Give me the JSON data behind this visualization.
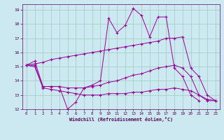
{
  "xlabel": "Windchill (Refroidissement éolien,°C)",
  "bg_color": "#cce8f0",
  "line_color": "#990099",
  "grid_color": "#99ccbb",
  "xlim": [
    -0.5,
    23.5
  ],
  "ylim": [
    12,
    19.4
  ],
  "xticks": [
    0,
    1,
    2,
    3,
    4,
    5,
    6,
    7,
    8,
    9,
    10,
    11,
    12,
    13,
    14,
    15,
    16,
    17,
    18,
    19,
    20,
    21,
    22,
    23
  ],
  "yticks": [
    12,
    13,
    14,
    15,
    16,
    17,
    18,
    19
  ],
  "series": [
    {
      "x": [
        0,
        1,
        2,
        3,
        4,
        5,
        6,
        7,
        8,
        9,
        10,
        11,
        12,
        13,
        14,
        15,
        16,
        17,
        18,
        19,
        20,
        21
      ],
      "y": [
        15.1,
        15.4,
        13.6,
        13.6,
        13.6,
        12.0,
        12.5,
        13.5,
        13.7,
        14.0,
        18.4,
        17.4,
        17.9,
        19.1,
        18.6,
        17.1,
        18.5,
        18.5,
        14.9,
        14.3,
        13.0,
        12.6
      ]
    },
    {
      "x": [
        0,
        1,
        2,
        3,
        4,
        5,
        6,
        7,
        8,
        9,
        10,
        11,
        12,
        13,
        14,
        15,
        16,
        17,
        18,
        19,
        20,
        21,
        22,
        23
      ],
      "y": [
        15.1,
        15.2,
        15.3,
        15.5,
        15.6,
        15.7,
        15.8,
        15.9,
        16.0,
        16.1,
        16.2,
        16.3,
        16.4,
        16.5,
        16.6,
        16.7,
        16.8,
        17.0,
        17.0,
        17.1,
        14.9,
        14.3,
        13.0,
        12.6
      ]
    },
    {
      "x": [
        0,
        1,
        2,
        3,
        4,
        5,
        6,
        7,
        8,
        9,
        10,
        11,
        12,
        13,
        14,
        15,
        16,
        17,
        18,
        19,
        20,
        21,
        22,
        23
      ],
      "y": [
        15.1,
        15.1,
        13.6,
        13.6,
        13.6,
        13.5,
        13.5,
        13.5,
        13.6,
        13.7,
        13.9,
        14.0,
        14.2,
        14.4,
        14.5,
        14.7,
        14.9,
        15.0,
        15.1,
        14.9,
        14.3,
        13.0,
        12.6,
        12.6
      ]
    },
    {
      "x": [
        0,
        1,
        2,
        3,
        4,
        5,
        6,
        7,
        8,
        9,
        10,
        11,
        12,
        13,
        14,
        15,
        16,
        17,
        18,
        19,
        20,
        21,
        22,
        23
      ],
      "y": [
        15.1,
        15.0,
        13.5,
        13.4,
        13.3,
        13.2,
        13.1,
        13.0,
        13.0,
        13.0,
        13.1,
        13.1,
        13.1,
        13.2,
        13.2,
        13.3,
        13.4,
        13.4,
        13.5,
        13.4,
        13.3,
        13.0,
        12.7,
        12.6
      ]
    }
  ]
}
